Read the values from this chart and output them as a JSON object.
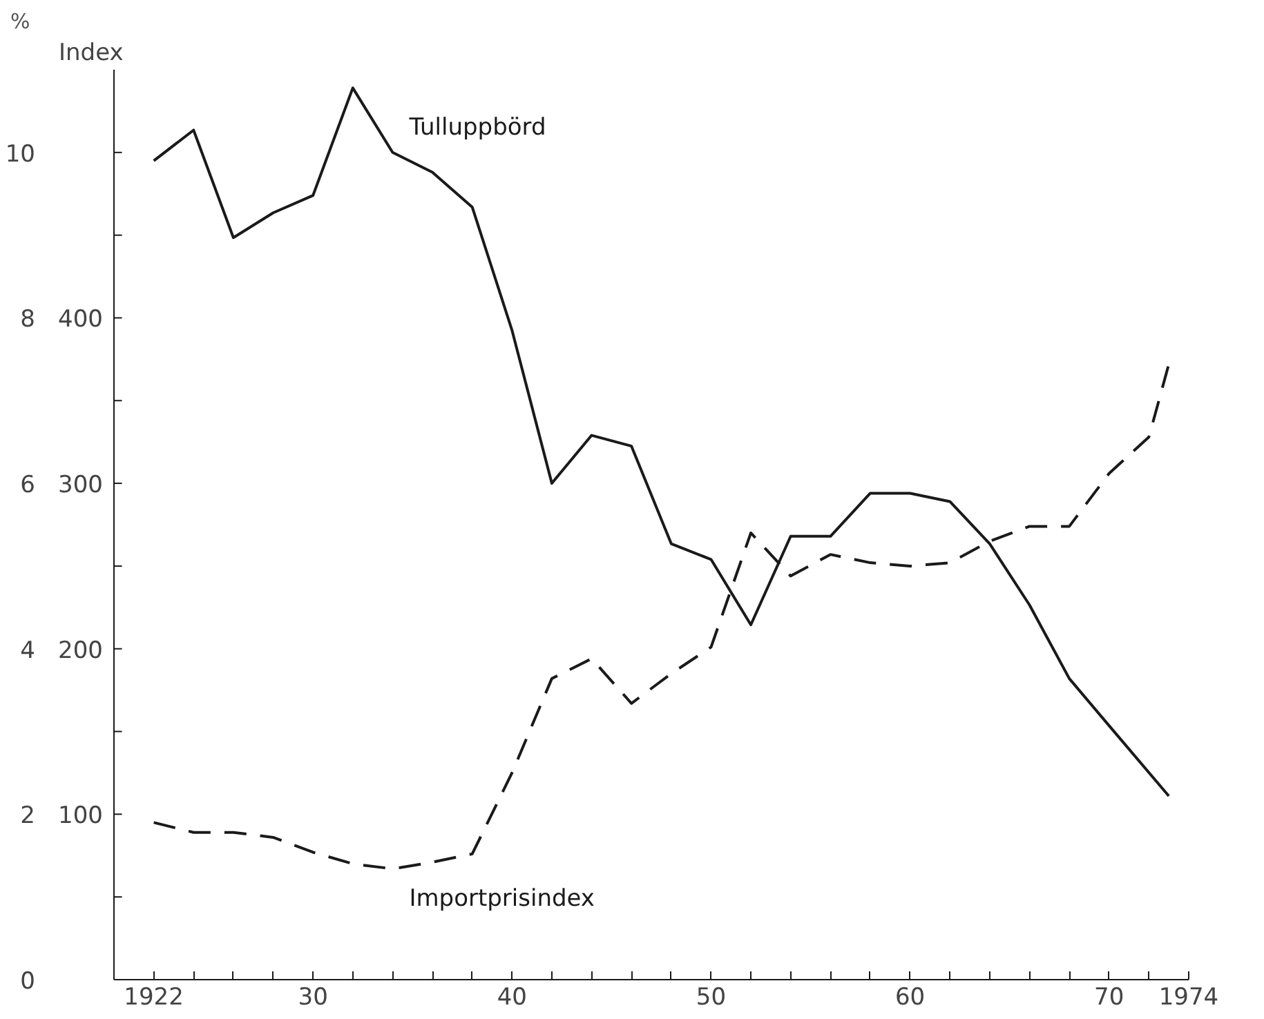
{
  "chart_data": {
    "type": "line",
    "ylabel": "%",
    "y2label": "Index",
    "x": [
      1922,
      1924,
      1926,
      1928,
      1930,
      1932,
      1934,
      1936,
      1938,
      1940,
      1942,
      1944,
      1946,
      1948,
      1950,
      1952,
      1954,
      1956,
      1958,
      1960,
      1962,
      1964,
      1966,
      1968,
      1970,
      1973
    ],
    "series": [
      {
        "name": "Tulluppbörd",
        "color": "#1a1a1a",
        "line_style": "solid",
        "values": [
          9.9,
          10.27,
          8.97,
          9.27,
          9.48,
          10.78,
          10.0,
          9.76,
          9.34,
          7.85,
          6.0,
          6.58,
          6.45,
          5.27,
          5.08,
          4.29,
          5.36,
          5.36,
          5.88,
          5.88,
          5.78,
          5.27,
          4.53,
          3.64,
          3.07,
          2.22
        ]
      },
      {
        "name": "Importprisindex",
        "color": "#1a1a1a",
        "line_style": "dashed",
        "axis": "y2",
        "x": [
          1922,
          1924,
          1926,
          1928,
          1930,
          1932,
          1934,
          1936,
          1938,
          1940,
          1942,
          1944,
          1946,
          1948,
          1950,
          1952,
          1954,
          1956,
          1958,
          1960,
          1962,
          1964,
          1966,
          1968,
          1970,
          1972,
          1973
        ],
        "values": [
          95,
          89,
          89,
          86,
          77,
          70,
          67,
          71,
          76,
          125,
          182,
          194,
          167,
          185,
          201,
          270,
          244,
          257,
          252,
          250,
          252,
          265,
          274,
          274,
          306,
          328,
          372
        ]
      }
    ],
    "xlim": [
      1920,
      1974
    ],
    "xticks": [
      {
        "value": 1922,
        "label": "1922"
      },
      {
        "value": 1924,
        "label": null
      },
      {
        "value": 1926,
        "label": null
      },
      {
        "value": 1928,
        "label": null
      },
      {
        "value": 1930,
        "label": "30"
      },
      {
        "value": 1932,
        "label": null
      },
      {
        "value": 1934,
        "label": null
      },
      {
        "value": 1936,
        "label": null
      },
      {
        "value": 1938,
        "label": null
      },
      {
        "value": 1940,
        "label": "40"
      },
      {
        "value": 1942,
        "label": null
      },
      {
        "value": 1944,
        "label": null
      },
      {
        "value": 1946,
        "label": null
      },
      {
        "value": 1948,
        "label": null
      },
      {
        "value": 1950,
        "label": "50"
      },
      {
        "value": 1952,
        "label": null
      },
      {
        "value": 1954,
        "label": null
      },
      {
        "value": 1956,
        "label": null
      },
      {
        "value": 1958,
        "label": null
      },
      {
        "value": 1960,
        "label": "60"
      },
      {
        "value": 1962,
        "label": null
      },
      {
        "value": 1964,
        "label": null
      },
      {
        "value": 1966,
        "label": null
      },
      {
        "value": 1968,
        "label": null
      },
      {
        "value": 1970,
        "label": "70"
      },
      {
        "value": 1972,
        "label": null
      },
      {
        "value": 1974,
        "label": "1974"
      }
    ],
    "ylim": [
      0,
      11
    ],
    "yticks": [
      0,
      {
        "value": 1,
        "label": null
      },
      2,
      {
        "value": 3,
        "label": null
      },
      4,
      {
        "value": 5,
        "label": null
      },
      6,
      {
        "value": 7,
        "label": null
      },
      8,
      {
        "value": 9,
        "label": null
      },
      10
    ],
    "y2lim": [
      0,
      550
    ],
    "y2ticks": [
      100,
      200,
      300,
      400
    ],
    "grid": false,
    "legend": false,
    "marker": "none"
  }
}
